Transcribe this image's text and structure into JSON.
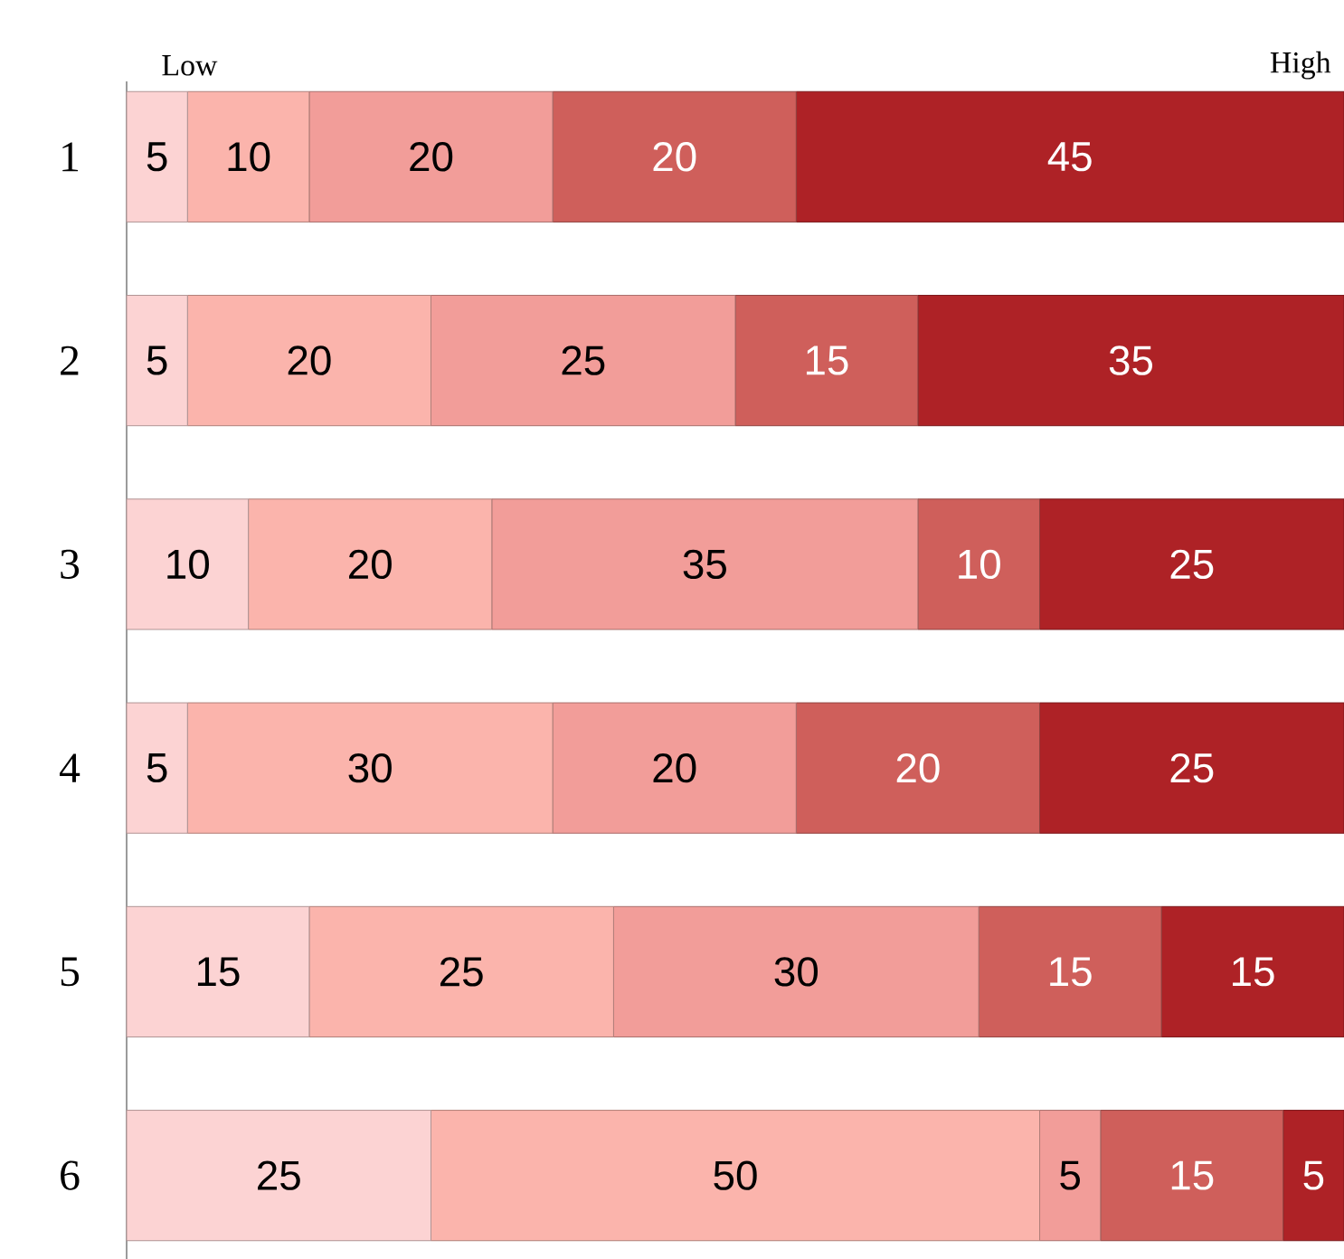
{
  "chart_data": {
    "type": "bar",
    "orientation": "horizontal",
    "stacked": true,
    "categories": [
      "1",
      "2",
      "3",
      "4",
      "5",
      "6"
    ],
    "series": [
      {
        "color": "#fcd3d3",
        "values": [
          5,
          5,
          10,
          5,
          15,
          25
        ]
      },
      {
        "color": "#fbb4ac",
        "values": [
          10,
          20,
          20,
          30,
          25,
          50
        ]
      },
      {
        "color": "#f29d99",
        "values": [
          20,
          25,
          35,
          20,
          30,
          5
        ]
      },
      {
        "color": "#cf5f5b",
        "values": [
          20,
          15,
          10,
          20,
          15,
          15
        ]
      },
      {
        "color": "#ae2226",
        "values": [
          45,
          35,
          25,
          25,
          15,
          5
        ]
      }
    ],
    "xlim": [
      0,
      100
    ],
    "data_labels": true,
    "tick_labels": "y",
    "annotations": [
      "Low",
      "High"
    ]
  }
}
